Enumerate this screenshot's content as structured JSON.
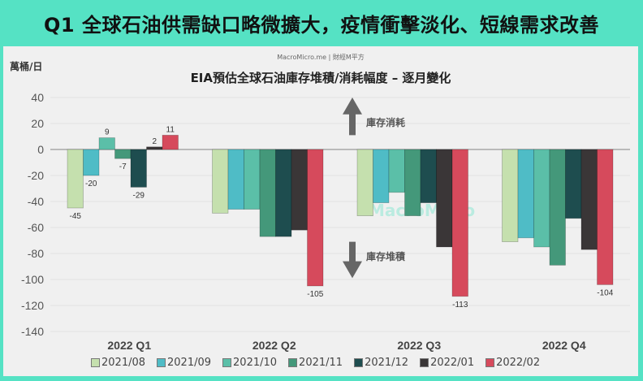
{
  "header": {
    "title": "Q1 全球石油供需缺口略微擴大，疫情衝擊淡化、短線需求改善"
  },
  "panel": {
    "unit_label": "萬桶/日",
    "source": "MacroMicro.me | 財經M平方",
    "watermark": "MacroMicro"
  },
  "annotations": {
    "up_label": "庫存消耗",
    "down_label": "庫存堆積"
  },
  "chart_data": {
    "type": "bar",
    "title": "EIA預估全球石油庫存堆積/消耗幅度 – 逐月變化",
    "xlabel": "",
    "ylabel": "萬桶/日",
    "ylim": [
      -140,
      40
    ],
    "yticks": [
      40,
      20,
      0,
      -20,
      -40,
      -60,
      -80,
      -100,
      -120,
      -140
    ],
    "grid": true,
    "legend_position": "bottom",
    "categories": [
      "2022 Q1",
      "2022 Q2",
      "2022 Q3",
      "2022 Q4"
    ],
    "series": [
      {
        "name": "2021/08",
        "color": "#c5e0ae",
        "values": [
          -45,
          -49,
          -51,
          -71
        ]
      },
      {
        "name": "2021/09",
        "color": "#4fbcc6",
        "values": [
          -20,
          -46,
          -41,
          -68
        ]
      },
      {
        "name": "2021/10",
        "color": "#5bbfa8",
        "values": [
          9,
          -46,
          -33,
          -75
        ]
      },
      {
        "name": "2021/11",
        "color": "#44987a",
        "values": [
          -7,
          -67,
          -51,
          -89
        ]
      },
      {
        "name": "2021/12",
        "color": "#1e4d4f",
        "values": [
          -29,
          -67,
          -41,
          -53
        ]
      },
      {
        "name": "2022/01",
        "color": "#3a3637",
        "values": [
          2,
          -62,
          -75,
          -77
        ]
      },
      {
        "name": "2022/02",
        "color": "#d64a5c",
        "values": [
          11,
          -105,
          -113,
          -104
        ]
      }
    ],
    "data_labels": {
      "2022 Q1": [
        "-45",
        "-20",
        "9",
        "-7",
        "-29",
        "2",
        "11"
      ],
      "2022 Q2": [
        "",
        "",
        "",
        "",
        "",
        "",
        "-105"
      ],
      "2022 Q3": [
        "",
        "",
        "",
        "",
        "",
        "",
        "-113"
      ],
      "2022 Q4": [
        "",
        "",
        "",
        "",
        "",
        "",
        "-104"
      ]
    }
  }
}
